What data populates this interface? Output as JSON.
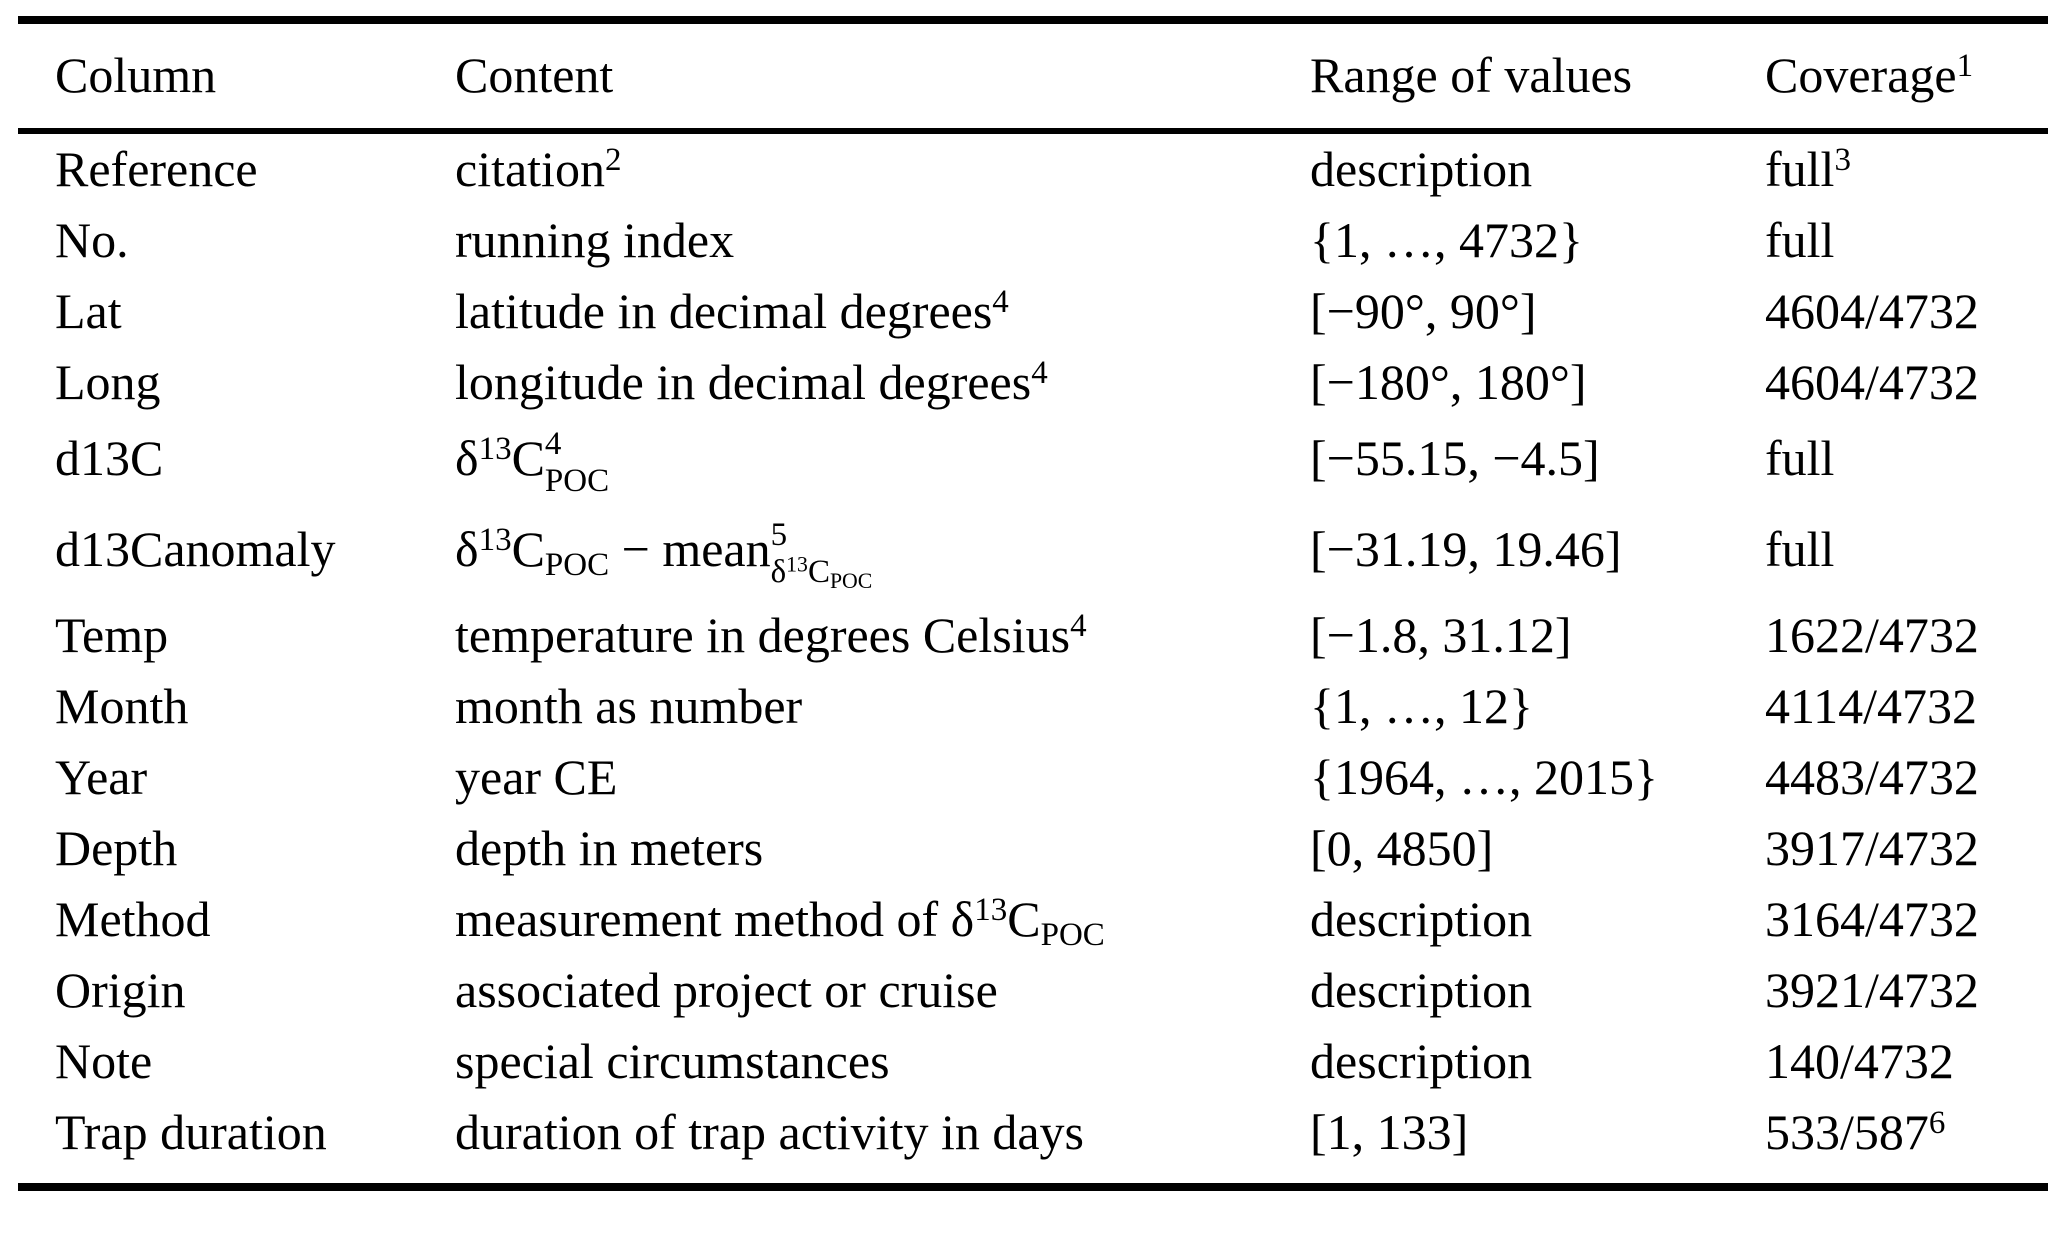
{
  "colors": {
    "text": "#000000",
    "background": "#ffffff",
    "rule": "#000000"
  },
  "table": {
    "headers": [
      {
        "key": "column",
        "content": [
          "Column"
        ]
      },
      {
        "key": "content",
        "content": [
          "Content"
        ]
      },
      {
        "key": "range",
        "content": [
          "Range of values"
        ]
      },
      {
        "key": "coverage",
        "content": [
          "Coverage",
          {
            "sup": "1"
          }
        ]
      }
    ],
    "rows": [
      {
        "column": [
          "Reference"
        ],
        "content": [
          "citation",
          {
            "sup": "2"
          }
        ],
        "range": [
          "description"
        ],
        "coverage": [
          "full",
          {
            "sup": "3"
          }
        ]
      },
      {
        "column": [
          "No."
        ],
        "content": [
          "running index"
        ],
        "range": [
          "{1, …, 4732}"
        ],
        "coverage": [
          "full"
        ]
      },
      {
        "column": [
          "Lat"
        ],
        "content": [
          "latitude in decimal degrees",
          {
            "sup": "4"
          }
        ],
        "range": [
          "[−90°, 90°]"
        ],
        "coverage": [
          "4604/4732"
        ]
      },
      {
        "column": [
          "Long"
        ],
        "content": [
          "longitude in decimal degrees",
          {
            "sup": "4"
          }
        ],
        "range": [
          "[−180°, 180°]"
        ],
        "coverage": [
          "4604/4732"
        ]
      },
      {
        "column": [
          "d13C"
        ],
        "content": [
          "δ",
          {
            "sup": "13"
          },
          "C",
          {
            "stack": {
              "sup": "4",
              "sub": [
                "POC"
              ]
            }
          }
        ],
        "range": [
          "[−55.15, −4.5]"
        ],
        "coverage": [
          "full"
        ]
      },
      {
        "column": [
          "d13Canomaly"
        ],
        "content": [
          "δ",
          {
            "sup": "13"
          },
          "C",
          {
            "sub": [
              "POC"
            ]
          },
          " − mean",
          {
            "stack": {
              "sup": "5",
              "sub": [
                "δ",
                {
                  "sup": "13"
                },
                "C",
                {
                  "sub": [
                    "POC"
                  ]
                }
              ]
            }
          }
        ],
        "range": [
          "[−31.19, 19.46]"
        ],
        "coverage": [
          "full"
        ]
      },
      {
        "column": [
          "Temp"
        ],
        "content": [
          "temperature in degrees Celsius",
          {
            "sup": "4"
          }
        ],
        "range": [
          "[−1.8, 31.12]"
        ],
        "coverage": [
          "1622/4732"
        ]
      },
      {
        "column": [
          "Month"
        ],
        "content": [
          "month as number"
        ],
        "range": [
          "{1, …, 12}"
        ],
        "coverage": [
          "4114/4732"
        ]
      },
      {
        "column": [
          "Year"
        ],
        "content": [
          "year CE"
        ],
        "range": [
          "{1964, …, 2015}"
        ],
        "coverage": [
          "4483/4732"
        ]
      },
      {
        "column": [
          "Depth"
        ],
        "content": [
          "depth in meters"
        ],
        "range": [
          "[0, 4850]"
        ],
        "coverage": [
          "3917/4732"
        ]
      },
      {
        "column": [
          "Method"
        ],
        "content": [
          "measurement method of δ",
          {
            "sup": "13"
          },
          "C",
          {
            "sub": [
              "POC"
            ]
          }
        ],
        "range": [
          "description"
        ],
        "coverage": [
          "3164/4732"
        ]
      },
      {
        "column": [
          "Origin"
        ],
        "content": [
          "associated project or cruise"
        ],
        "range": [
          "description"
        ],
        "coverage": [
          "3921/4732"
        ]
      },
      {
        "column": [
          "Note"
        ],
        "content": [
          "special circumstances"
        ],
        "range": [
          "description"
        ],
        "coverage": [
          "140/4732"
        ]
      },
      {
        "column": [
          "Trap duration"
        ],
        "content": [
          "duration of trap activity in days"
        ],
        "range": [
          "[1, 133]"
        ],
        "coverage": [
          "533/587",
          {
            "sup": "6"
          }
        ]
      }
    ]
  }
}
